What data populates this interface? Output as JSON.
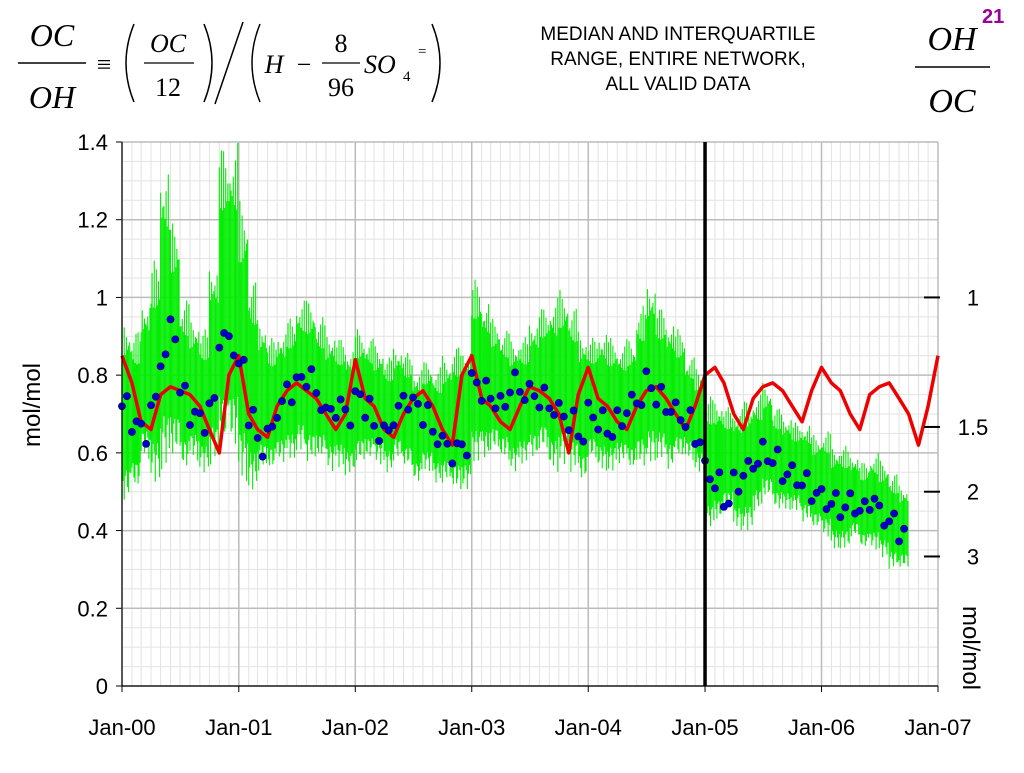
{
  "slide": {
    "title_lines": [
      "MEDIAN AND INTERQUARTILE",
      "RANGE, ENTIRE NETWORK,",
      "ALL VALID DATA"
    ],
    "slide_number": "21",
    "formula_left": {
      "lhs_num": "OC",
      "lhs_den": "OH",
      "equiv": "≡",
      "f1_num": "OC",
      "f1_den": "12",
      "h": "H",
      "minus": "−",
      "f2_num": "8",
      "f2_den": "96",
      "so": "SO",
      "so_sub": "4",
      "so_sup": "="
    },
    "formula_right": {
      "num": "OH",
      "den": "OC"
    }
  },
  "chart_data": {
    "type": "line",
    "ylabel": "mol/mol",
    "secondary_ylabel": "mol/mol",
    "ylim": [
      0,
      1.4
    ],
    "yticks": [
      "0",
      "0.2",
      "0.4",
      "0.6",
      "0.8",
      "1",
      "1.2",
      "1.4"
    ],
    "xlim": [
      "2000-01-01",
      "2007-01-01"
    ],
    "xticks": [
      "Jan-00",
      "Jan-01",
      "Jan-02",
      "Jan-03",
      "Jan-04",
      "Jan-05",
      "Jan-06",
      "Jan-07"
    ],
    "secondary_axis": {
      "type": "reciprocal",
      "ticks": [
        {
          "label": "1",
          "value": 1
        },
        {
          "label": "1.5",
          "value": 1.5
        },
        {
          "label": "2",
          "value": 2
        },
        {
          "label": "3",
          "value": 3
        }
      ]
    },
    "vertical_line_x": "2005-01-01",
    "grid": true,
    "colors": {
      "range": "#00ee00",
      "median": "#0000cc",
      "red_line": "#ee0000",
      "vline": "#000000"
    },
    "series": [
      {
        "style": "interquartile-range",
        "x": [
          "2000-01-01",
          "2000-02-01",
          "2000-03-01",
          "2000-04-01",
          "2000-05-01",
          "2000-06-01",
          "2000-07-01",
          "2000-08-01",
          "2000-09-01",
          "2000-10-01",
          "2000-11-01",
          "2000-12-01",
          "2001-01-01",
          "2001-02-01",
          "2001-03-01",
          "2001-04-01",
          "2001-05-01",
          "2001-06-01",
          "2001-07-01",
          "2001-08-01",
          "2001-09-01",
          "2001-10-01",
          "2001-11-01",
          "2001-12-01",
          "2002-01-01",
          "2002-02-01",
          "2002-03-01",
          "2002-04-01",
          "2002-05-01",
          "2002-06-01",
          "2002-07-01",
          "2002-08-01",
          "2002-09-01",
          "2002-10-01",
          "2002-11-01",
          "2002-12-01",
          "2003-01-01",
          "2003-02-01",
          "2003-03-01",
          "2003-04-01",
          "2003-05-01",
          "2003-06-01",
          "2003-07-01",
          "2003-08-01",
          "2003-09-01",
          "2003-10-01",
          "2003-11-01",
          "2003-12-01",
          "2004-01-01",
          "2004-02-01",
          "2004-03-01",
          "2004-04-01",
          "2004-05-01",
          "2004-06-01",
          "2004-07-01",
          "2004-08-01",
          "2004-09-01",
          "2004-10-01",
          "2004-11-01",
          "2004-12-01",
          "2005-01-01",
          "2005-02-01",
          "2005-03-01",
          "2005-04-01",
          "2005-05-01",
          "2005-06-01",
          "2005-07-01",
          "2005-08-01",
          "2005-09-01",
          "2005-10-01",
          "2005-11-01",
          "2005-12-01",
          "2006-01-01",
          "2006-02-01",
          "2006-03-01",
          "2006-04-01",
          "2006-05-01",
          "2006-06-01",
          "2006-07-01",
          "2006-08-01",
          "2006-09-01"
        ],
        "low": [
          0.47,
          0.5,
          0.58,
          0.52,
          0.55,
          0.58,
          0.55,
          0.58,
          0.55,
          0.57,
          0.6,
          0.6,
          0.52,
          0.5,
          0.55,
          0.55,
          0.57,
          0.58,
          0.6,
          0.57,
          0.58,
          0.55,
          0.56,
          0.54,
          0.57,
          0.58,
          0.57,
          0.55,
          0.58,
          0.56,
          0.52,
          0.55,
          0.52,
          0.52,
          0.5,
          0.5,
          0.57,
          0.58,
          0.6,
          0.58,
          0.55,
          0.57,
          0.58,
          0.6,
          0.55,
          0.57,
          0.55,
          0.52,
          0.58,
          0.55,
          0.55,
          0.57,
          0.55,
          0.56,
          0.57,
          0.58,
          0.55,
          0.58,
          0.58,
          0.55,
          0.4,
          0.42,
          0.45,
          0.4,
          0.4,
          0.45,
          0.48,
          0.45,
          0.45,
          0.45,
          0.42,
          0.4,
          0.38,
          0.35,
          0.35,
          0.38,
          0.35,
          0.35,
          0.33,
          0.3,
          0.3
        ],
        "high": [
          0.95,
          0.92,
          1.0,
          1.1,
          1.35,
          1.2,
          1.0,
          0.95,
          0.92,
          1.1,
          1.4,
          1.4,
          1.25,
          1.05,
          0.95,
          0.9,
          0.92,
          0.95,
          1.0,
          1.0,
          0.95,
          0.92,
          0.9,
          0.88,
          0.92,
          0.9,
          0.88,
          0.85,
          0.88,
          0.86,
          0.82,
          0.84,
          0.82,
          0.85,
          0.88,
          0.88,
          1.05,
          1.0,
          0.95,
          0.92,
          0.9,
          0.9,
          0.95,
          0.98,
          1.0,
          1.02,
          0.98,
          0.92,
          0.9,
          0.92,
          0.9,
          0.88,
          0.9,
          0.98,
          1.05,
          0.98,
          0.95,
          0.92,
          0.85,
          0.82,
          0.75,
          0.74,
          0.72,
          0.72,
          0.74,
          0.75,
          0.78,
          0.72,
          0.7,
          0.68,
          0.68,
          0.65,
          0.66,
          0.62,
          0.62,
          0.6,
          0.58,
          0.6,
          0.58,
          0.55,
          0.52
        ]
      },
      {
        "style": "median-dots",
        "x": [
          "2000-01-01",
          "2000-02-01",
          "2000-03-01",
          "2000-04-01",
          "2000-05-01",
          "2000-06-01",
          "2000-07-01",
          "2000-08-01",
          "2000-09-01",
          "2000-10-01",
          "2000-11-01",
          "2000-12-01",
          "2001-01-01",
          "2001-02-01",
          "2001-03-01",
          "2001-04-01",
          "2001-05-01",
          "2001-06-01",
          "2001-07-01",
          "2001-08-01",
          "2001-09-01",
          "2001-10-01",
          "2001-11-01",
          "2001-12-01",
          "2002-01-01",
          "2002-02-01",
          "2002-03-01",
          "2002-04-01",
          "2002-05-01",
          "2002-06-01",
          "2002-07-01",
          "2002-08-01",
          "2002-09-01",
          "2002-10-01",
          "2002-11-01",
          "2002-12-01",
          "2003-01-01",
          "2003-02-01",
          "2003-03-01",
          "2003-04-01",
          "2003-05-01",
          "2003-06-01",
          "2003-07-01",
          "2003-08-01",
          "2003-09-01",
          "2003-10-01",
          "2003-11-01",
          "2003-12-01",
          "2004-01-01",
          "2004-02-01",
          "2004-03-01",
          "2004-04-01",
          "2004-05-01",
          "2004-06-01",
          "2004-07-01",
          "2004-08-01",
          "2004-09-01",
          "2004-10-01",
          "2004-11-01",
          "2004-12-01",
          "2005-01-01",
          "2005-02-01",
          "2005-03-01",
          "2005-04-01",
          "2005-05-01",
          "2005-06-01",
          "2005-07-01",
          "2005-08-01",
          "2005-09-01",
          "2005-10-01",
          "2005-11-01",
          "2005-12-01",
          "2006-01-01",
          "2006-02-01",
          "2006-03-01",
          "2006-04-01",
          "2006-05-01",
          "2006-06-01",
          "2006-07-01",
          "2006-08-01",
          "2006-09-01"
        ],
        "values": [
          0.72,
          0.68,
          0.65,
          0.72,
          0.85,
          0.92,
          0.75,
          0.7,
          0.68,
          0.72,
          0.9,
          0.88,
          0.82,
          0.7,
          0.62,
          0.65,
          0.72,
          0.76,
          0.78,
          0.8,
          0.74,
          0.7,
          0.72,
          0.7,
          0.74,
          0.72,
          0.66,
          0.65,
          0.7,
          0.74,
          0.72,
          0.7,
          0.65,
          0.62,
          0.6,
          0.62,
          0.78,
          0.76,
          0.74,
          0.72,
          0.78,
          0.76,
          0.75,
          0.74,
          0.72,
          0.7,
          0.68,
          0.65,
          0.7,
          0.68,
          0.66,
          0.68,
          0.72,
          0.74,
          0.78,
          0.74,
          0.72,
          0.7,
          0.68,
          0.64,
          0.55,
          0.52,
          0.48,
          0.52,
          0.55,
          0.58,
          0.6,
          0.58,
          0.55,
          0.54,
          0.52,
          0.5,
          0.48,
          0.47,
          0.46,
          0.47,
          0.45,
          0.48,
          0.44,
          0.42,
          0.4
        ]
      },
      {
        "style": "red-line",
        "x": [
          "2000-01-01",
          "2000-02-01",
          "2000-03-01",
          "2000-04-01",
          "2000-05-01",
          "2000-06-01",
          "2000-07-01",
          "2000-08-01",
          "2000-09-01",
          "2000-10-01",
          "2000-11-01",
          "2000-12-01",
          "2001-01-01",
          "2001-02-01",
          "2001-03-01",
          "2001-04-01",
          "2001-05-01",
          "2001-06-01",
          "2001-07-01",
          "2001-08-01",
          "2001-09-01",
          "2001-10-01",
          "2001-11-01",
          "2001-12-01",
          "2002-01-01",
          "2002-02-01",
          "2002-03-01",
          "2002-04-01",
          "2002-05-01",
          "2002-06-01",
          "2002-07-01",
          "2002-08-01",
          "2002-09-01",
          "2002-10-01",
          "2002-11-01",
          "2002-12-01",
          "2003-01-01",
          "2003-02-01",
          "2003-03-01",
          "2003-04-01",
          "2003-05-01",
          "2003-06-01",
          "2003-07-01",
          "2003-08-01",
          "2003-09-01",
          "2003-10-01",
          "2003-11-01",
          "2003-12-01",
          "2004-01-01",
          "2004-02-01",
          "2004-03-01",
          "2004-04-01",
          "2004-05-01",
          "2004-06-01",
          "2004-07-01",
          "2004-08-01",
          "2004-09-01",
          "2004-10-01",
          "2004-11-01",
          "2004-12-01",
          "2005-01-01",
          "2005-02-01",
          "2005-03-01",
          "2005-04-01",
          "2005-05-01",
          "2005-06-01",
          "2005-07-01",
          "2005-08-01",
          "2005-09-01",
          "2005-10-01",
          "2005-11-01",
          "2005-12-01",
          "2006-01-01",
          "2006-02-01",
          "2006-03-01",
          "2006-04-01",
          "2006-05-01",
          "2006-06-01",
          "2006-07-01",
          "2006-08-01",
          "2006-09-01",
          "2006-10-01",
          "2006-11-01",
          "2006-12-01",
          "2007-01-01"
        ],
        "values": [
          0.85,
          0.78,
          0.68,
          0.66,
          0.75,
          0.77,
          0.76,
          0.75,
          0.72,
          0.66,
          0.6,
          0.8,
          0.85,
          0.7,
          0.66,
          0.64,
          0.72,
          0.76,
          0.78,
          0.76,
          0.74,
          0.7,
          0.66,
          0.7,
          0.84,
          0.74,
          0.72,
          0.66,
          0.64,
          0.7,
          0.74,
          0.76,
          0.72,
          0.66,
          0.62,
          0.8,
          0.85,
          0.74,
          0.72,
          0.68,
          0.66,
          0.72,
          0.77,
          0.76,
          0.74,
          0.7,
          0.6,
          0.75,
          0.82,
          0.74,
          0.72,
          0.68,
          0.66,
          0.72,
          0.76,
          0.77,
          0.74,
          0.7,
          0.66,
          0.72,
          0.8,
          0.82,
          0.78,
          0.7,
          0.66,
          0.74,
          0.77,
          0.78,
          0.76,
          0.72,
          0.68,
          0.76,
          0.82,
          0.78,
          0.76,
          0.7,
          0.66,
          0.75,
          0.77,
          0.78,
          0.74,
          0.7,
          0.62,
          0.72,
          0.85
        ]
      }
    ]
  }
}
